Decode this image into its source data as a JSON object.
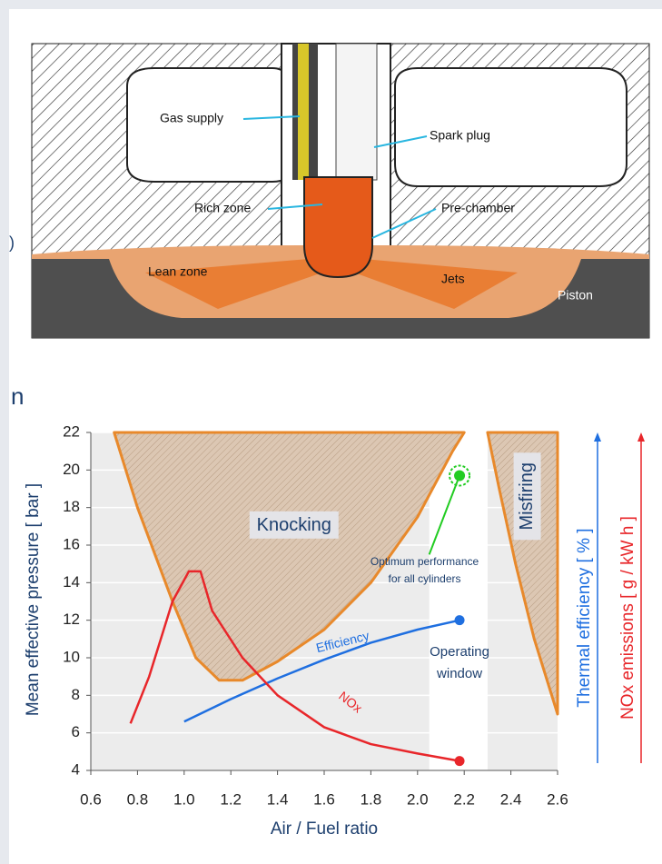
{
  "diagram": {
    "labels": [
      "Gas supply",
      "Spark plug",
      "Rich zone",
      "Pre-chamber",
      "Lean zone",
      "Jets",
      "Piston"
    ]
  },
  "fragments": {
    "left_mark": ")",
    "heading": "n"
  },
  "chart_data": {
    "type": "line",
    "x_label": "Air / Fuel ratio",
    "y_label": "Mean effective pressure  [ bar ]",
    "y2_label": "Thermal efficiency [ % ]",
    "y3_label": "NOx emissions [ g / kW h ]",
    "xlim": [
      0.6,
      2.6
    ],
    "xticks": [
      0.6,
      0.8,
      {
        "value": 1,
        "label": "1.0"
      },
      1.2,
      1.4,
      1.6,
      1.8,
      {
        "value": 2,
        "label": "2.0"
      },
      2.2,
      2.4,
      2.6
    ],
    "ylim": [
      4,
      22
    ],
    "yticks": [
      4,
      6,
      8,
      10,
      12,
      14,
      16,
      18,
      20,
      22
    ],
    "grid": true,
    "series": [
      {
        "name": "Efficiency",
        "color": "#1f6fe0",
        "x": [
          1.0,
          1.2,
          1.4,
          1.6,
          1.8,
          2.0,
          2.18
        ],
        "values": [
          6.6,
          7.8,
          8.9,
          9.9,
          10.8,
          11.5,
          12
        ]
      },
      {
        "name": "NOx",
        "color": "#e8262a",
        "x": [
          0.77,
          0.85,
          0.95,
          1.02,
          1.07,
          1.12,
          1.25,
          1.4,
          1.6,
          1.8,
          2.0,
          2.18
        ],
        "values": [
          6.5,
          9,
          13,
          14.6,
          14.6,
          12.5,
          10,
          8,
          6.3,
          5.4,
          4.9,
          4.5
        ]
      }
    ],
    "regions": [
      {
        "name": "Knocking",
        "color": "#e8892b",
        "x": [
          0.7,
          0.8,
          0.95,
          1.05,
          1.15,
          1.25,
          1.4,
          1.6,
          1.8,
          2.0,
          2.15,
          2.2
        ],
        "y": [
          22,
          18,
          13,
          10,
          8.8,
          8.8,
          9.8,
          11.5,
          14,
          17.5,
          21,
          22
        ]
      },
      {
        "name": "Misfiring",
        "color": "#e8892b",
        "x": [
          2.3,
          2.35,
          2.42,
          2.5,
          2.6,
          2.6
        ],
        "y": [
          22,
          19,
          15,
          11,
          7,
          22
        ]
      }
    ],
    "window": {
      "label": [
        "Operating",
        "window"
      ],
      "x": [
        2.05,
        2.3
      ]
    },
    "optimum": {
      "label": [
        "Optimum performance",
        "for all cylinders"
      ],
      "x": 2.18,
      "y": 19.7,
      "color": "#22cc22"
    }
  }
}
